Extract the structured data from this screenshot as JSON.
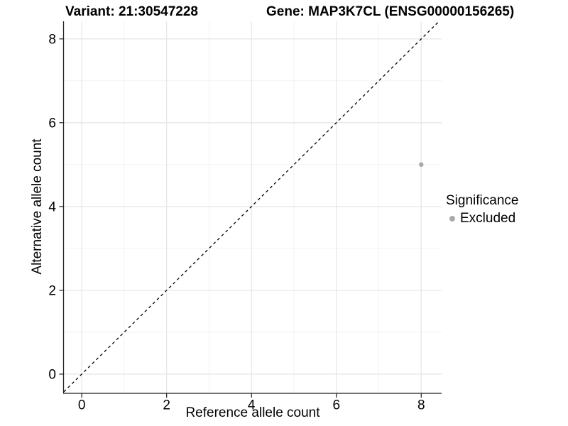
{
  "titles": {
    "variant": "Variant: 21:30547228",
    "gene": "Gene: MAP3K7CL (ENSG00000156265)"
  },
  "chart_data": {
    "type": "scatter",
    "xlabel": "Reference allele count",
    "ylabel": "Alternative allele count",
    "xlim": [
      -0.42,
      8.48
    ],
    "ylim": [
      -0.45,
      8.42
    ],
    "x_ticks": [
      0,
      2,
      4,
      6,
      8
    ],
    "y_ticks": [
      0,
      2,
      4,
      6,
      8
    ],
    "x_minor_ticks": [
      1,
      3,
      5,
      7
    ],
    "y_minor_ticks": [
      1,
      3,
      5,
      7
    ],
    "grid": true,
    "reference_line": {
      "equation": "y = x",
      "style": "dashed",
      "color": "#000000",
      "from": -0.42,
      "to": 8.42
    },
    "points": [
      {
        "x": 8,
        "y": 5,
        "significance": "Excluded",
        "color": "#a9a9a9"
      }
    ],
    "legend": {
      "title": "Significance",
      "position": "right",
      "items": [
        {
          "label": "Excluded",
          "color": "#a9a9a9"
        }
      ]
    }
  },
  "colors": {
    "background": "#ffffff",
    "major_grid": "#e7e7e7",
    "minor_grid": "#f2f2f2",
    "axis_line": "#1f1f1f",
    "tick_mark": "#1f1f1f",
    "text": "#000000",
    "point": "#a9a9a9"
  }
}
